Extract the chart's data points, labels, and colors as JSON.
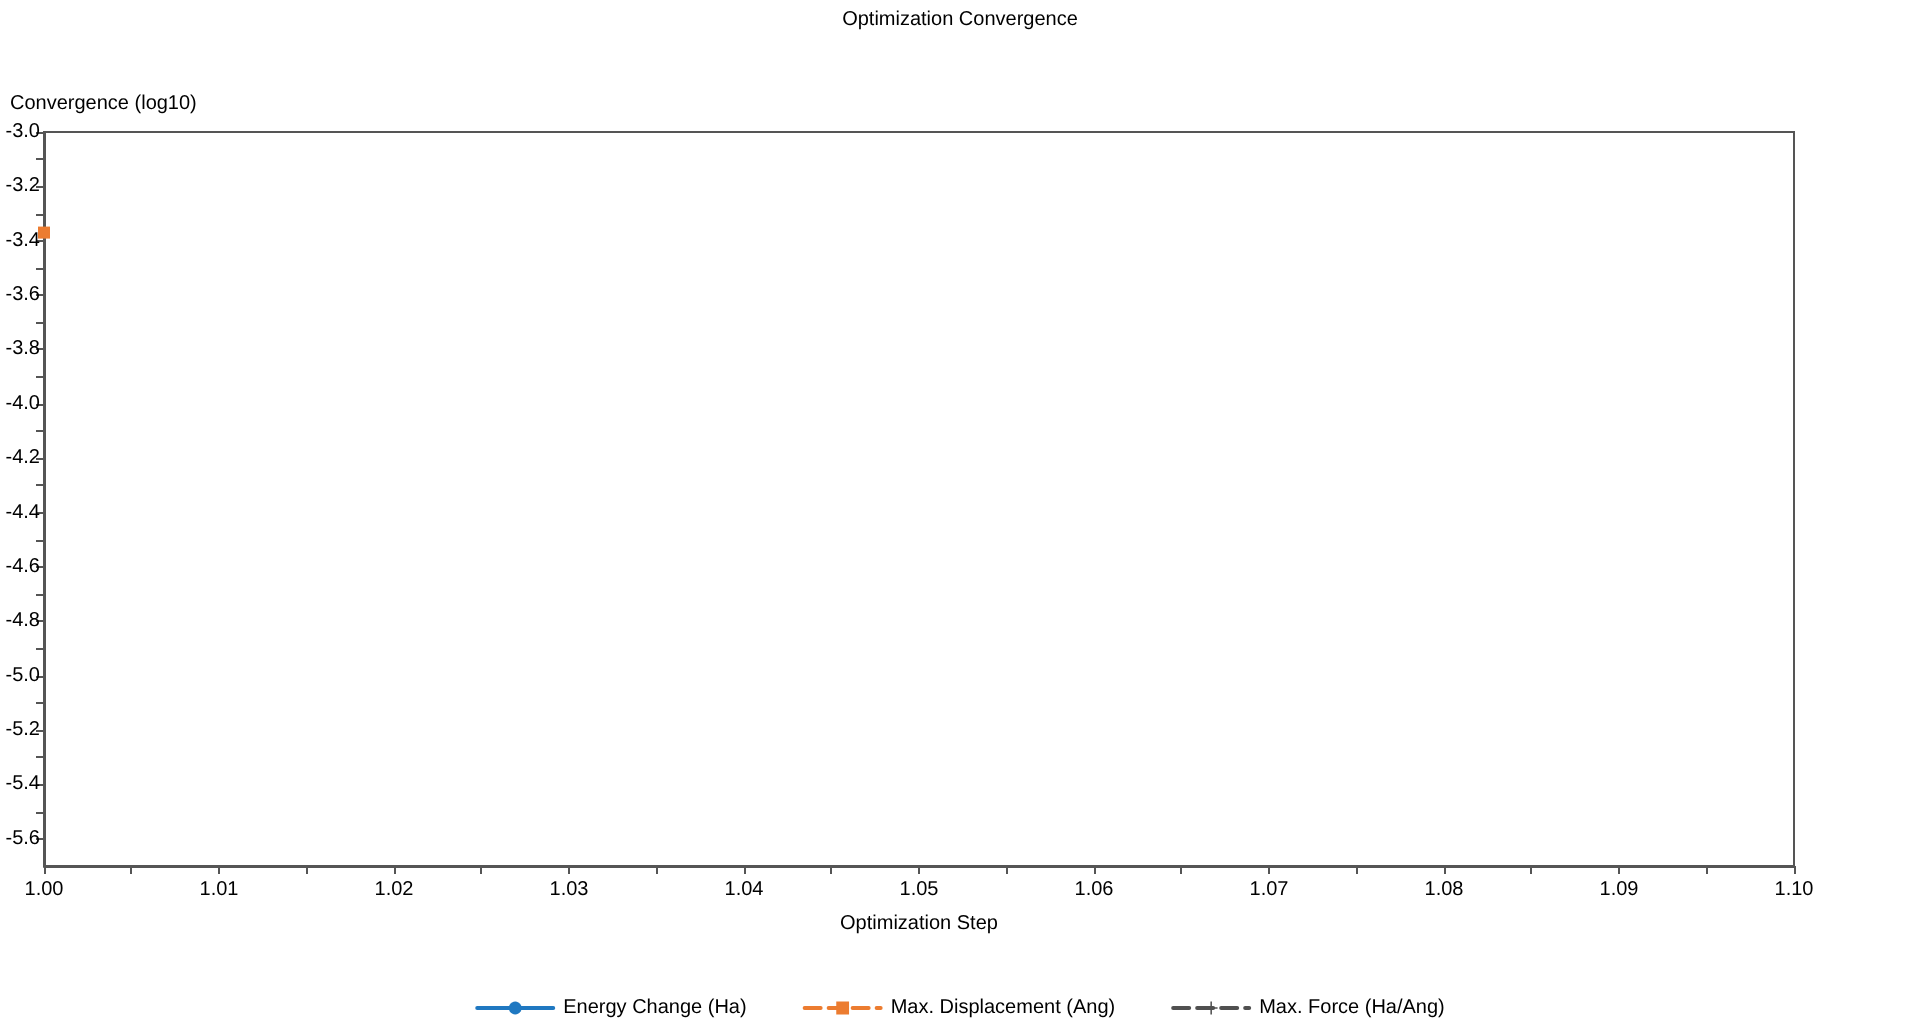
{
  "chart_data": {
    "type": "line",
    "title": "Optimization Convergence",
    "xlabel": "Optimization Step",
    "ylabel": "Convergence (log10)",
    "x": [
      1
    ],
    "series": [
      {
        "name": "Energy Change (Ha)",
        "color": "#1f78c1",
        "values": [
          null
        ],
        "marker": "circle",
        "line_style": "solid"
      },
      {
        "name": "Max. Displacement (Ang)",
        "color": "#ec7c30",
        "values": [
          -3.37
        ],
        "marker": "square",
        "line_style": "dashed"
      },
      {
        "name": "Max. Force (Ha/Ang)",
        "color": "#505050",
        "values": [
          null
        ],
        "marker": "cross",
        "line_style": "dashed"
      }
    ],
    "xlim": [
      1,
      1.1
    ],
    "xticks": [
      {
        "value": 1,
        "label": "1.00"
      },
      {
        "value": 1.005,
        "label": null
      },
      {
        "value": 1.01,
        "label": "1.01"
      },
      {
        "value": 1.015,
        "label": null
      },
      {
        "value": 1.02,
        "label": "1.02"
      },
      {
        "value": 1.025,
        "label": null
      },
      {
        "value": 1.03,
        "label": "1.03"
      },
      {
        "value": 1.035,
        "label": null
      },
      {
        "value": 1.04,
        "label": "1.04"
      },
      {
        "value": 1.045,
        "label": null
      },
      {
        "value": 1.05,
        "label": "1.05"
      },
      {
        "value": 1.055,
        "label": null
      },
      {
        "value": 1.06,
        "label": "1.06"
      },
      {
        "value": 1.065,
        "label": null
      },
      {
        "value": 1.07,
        "label": "1.07"
      },
      {
        "value": 1.075,
        "label": null
      },
      {
        "value": 1.08,
        "label": "1.08"
      },
      {
        "value": 1.085,
        "label": null
      },
      {
        "value": 1.09,
        "label": "1.09"
      },
      {
        "value": 1.095,
        "label": null
      },
      {
        "value": 1.1,
        "label": "1.10"
      }
    ],
    "ylim": [
      -5.7,
      -3
    ],
    "yticks": [
      {
        "value": -3,
        "label": "-3.0"
      },
      {
        "value": -3.1,
        "label": null
      },
      {
        "value": -3.2,
        "label": "-3.2"
      },
      {
        "value": -3.3,
        "label": null
      },
      {
        "value": -3.4,
        "label": "-3.4"
      },
      {
        "value": -3.5,
        "label": null
      },
      {
        "value": -3.6,
        "label": "-3.6"
      },
      {
        "value": -3.7,
        "label": null
      },
      {
        "value": -3.8,
        "label": "-3.8"
      },
      {
        "value": -3.9,
        "label": null
      },
      {
        "value": -4,
        "label": "-4.0"
      },
      {
        "value": -4.1,
        "label": null
      },
      {
        "value": -4.2,
        "label": "-4.2"
      },
      {
        "value": -4.3,
        "label": null
      },
      {
        "value": -4.4,
        "label": "-4.4"
      },
      {
        "value": -4.5,
        "label": null
      },
      {
        "value": -4.6,
        "label": "-4.6"
      },
      {
        "value": -4.7,
        "label": null
      },
      {
        "value": -4.8,
        "label": "-4.8"
      },
      {
        "value": -4.9,
        "label": null
      },
      {
        "value": -5,
        "label": "-5.0"
      },
      {
        "value": -5.1,
        "label": null
      },
      {
        "value": -5.2,
        "label": "-5.2"
      },
      {
        "value": -5.3,
        "label": null
      },
      {
        "value": -5.4,
        "label": "-5.4"
      },
      {
        "value": -5.5,
        "label": null
      },
      {
        "value": -5.6,
        "label": "-5.6"
      }
    ],
    "grid": false,
    "legend": "bottom"
  }
}
